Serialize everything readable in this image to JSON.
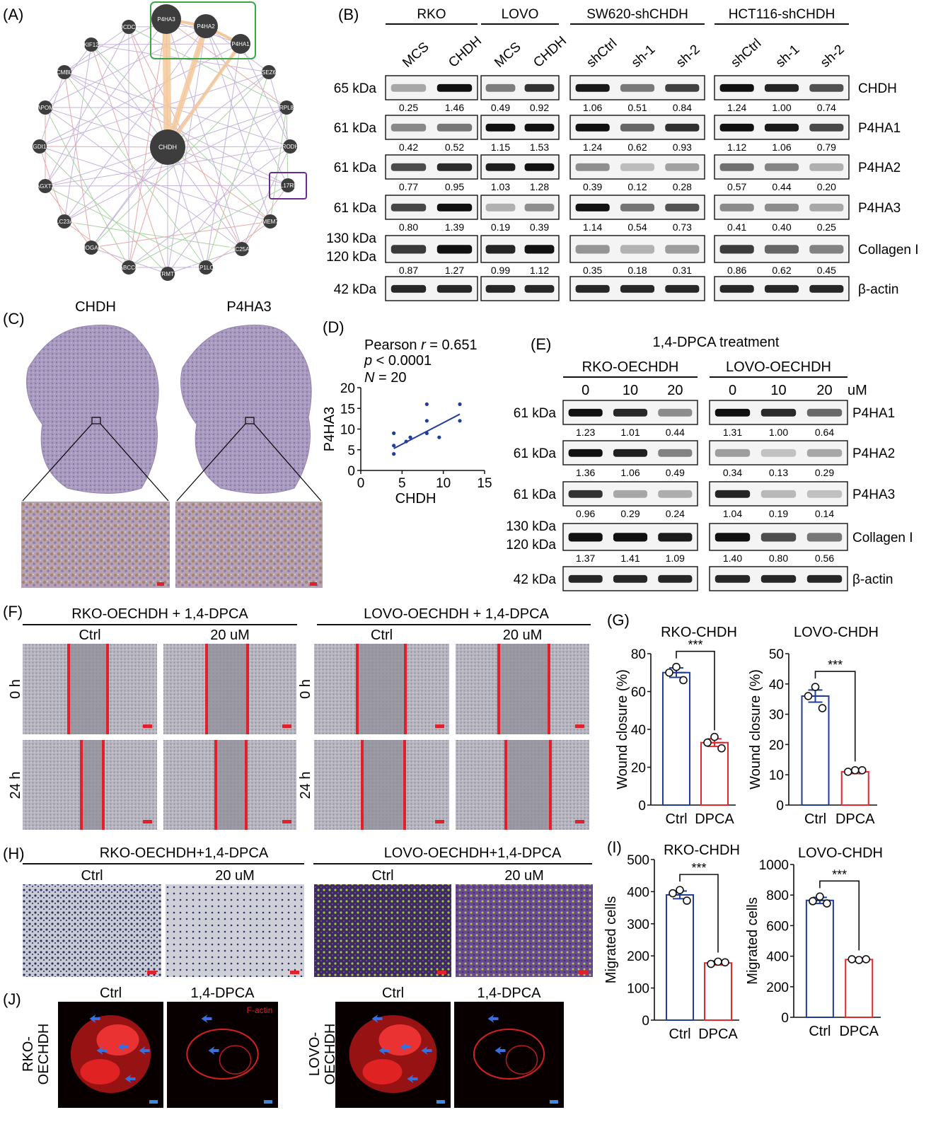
{
  "panels": {
    "A": "(A)",
    "B": "(B)",
    "C": "(C)",
    "D": "(D)",
    "E": "(E)",
    "F": "(F)",
    "G": "(G)",
    "H": "(H)",
    "I": "(I)",
    "J": "(J)"
  },
  "network": {
    "center": "CHDH",
    "boxed_top": [
      "P4HA3",
      "P4HA2",
      "P4HA1"
    ],
    "boxed_right": "IL17RB",
    "nodes": [
      "DCDC2",
      "KIF12",
      "CMBL",
      "APOM",
      "GDI1",
      "AGXT2",
      "SLC23A3",
      "HOGA1",
      "ABCC6",
      "TRMT1",
      "MAP1LC3A",
      "SLC25A10",
      "TMEM70",
      "PRODH2",
      "RPL8",
      "SEZ6"
    ],
    "colors": {
      "green_box": "#3aa845",
      "purple_box": "#6a2c8f",
      "thick_edge": "#f5c89a",
      "node": "#3d3d3d"
    }
  },
  "blotB": {
    "groups": [
      "RKO",
      "LOVO",
      "SW620-shCHDH",
      "HCT116-shCHDH"
    ],
    "lanes": [
      [
        "MCS",
        "CHDH"
      ],
      [
        "MCS",
        "CHDH"
      ],
      [
        "shCtrl",
        "sh-1",
        "sh-2"
      ],
      [
        "shCtrl",
        "sh-1",
        "sh-2"
      ]
    ],
    "rows": [
      {
        "kda": "65 kDa",
        "protein": "CHDH",
        "values": [
          [
            "0.25",
            "1.46"
          ],
          [
            "0.49",
            "0.92"
          ],
          [
            "1.06",
            "0.51",
            "0.84"
          ],
          [
            "1.24",
            "1.00",
            "0.74"
          ]
        ]
      },
      {
        "kda": "61 kDa",
        "protein": "P4HA1",
        "values": [
          [
            "0.42",
            "0.52"
          ],
          [
            "1.15",
            "1.53"
          ],
          [
            "1.24",
            "0.62",
            "0.93"
          ],
          [
            "1.12",
            "1.06",
            "0.79"
          ]
        ]
      },
      {
        "kda": "61 kDa",
        "protein": "P4HA2",
        "values": [
          [
            "0.77",
            "0.95"
          ],
          [
            "1.03",
            "1.28"
          ],
          [
            "0.39",
            "0.12",
            "0.28"
          ],
          [
            "0.57",
            "0.44",
            "0.20"
          ]
        ]
      },
      {
        "kda": "61 kDa",
        "protein": "P4HA3",
        "values": [
          [
            "0.80",
            "1.39"
          ],
          [
            "0.19",
            "0.39"
          ],
          [
            "1.14",
            "0.54",
            "0.73"
          ],
          [
            "0.41",
            "0.40",
            "0.25"
          ]
        ]
      },
      {
        "kda": "130 kDa",
        "kda2": "120 kDa",
        "protein": "Collagen I",
        "values": [
          [
            "0.87",
            "1.27"
          ],
          [
            "0.99",
            "1.12"
          ],
          [
            "0.35",
            "0.18",
            "0.31"
          ],
          [
            "0.86",
            "0.62",
            "0.45"
          ]
        ]
      },
      {
        "kda": "42 kDa",
        "protein": "β-actin",
        "values": null
      }
    ]
  },
  "ihc": {
    "labels": [
      "CHDH",
      "P4HA3"
    ]
  },
  "scatterD": {
    "stat1_prefix": "Pearson ",
    "stat1_italic": "r",
    "stat1_suffix": " = 0.651",
    "stat2_italic": "p",
    "stat2_suffix": " < 0.0001",
    "stat3_italic": "N",
    "stat3_suffix": " = 20",
    "chart_data": {
      "type": "scatter",
      "xlabel": "CHDH",
      "ylabel": "P4HA3",
      "xlim": [
        0,
        15
      ],
      "ylim": [
        0,
        20
      ],
      "xticks": [
        "0",
        "5",
        "10",
        "15"
      ],
      "yticks": [
        "0",
        "5",
        "10",
        "15",
        "20"
      ],
      "points": [
        [
          4,
          4
        ],
        [
          4,
          6
        ],
        [
          4,
          9
        ],
        [
          5.5,
          7
        ],
        [
          6,
          8
        ],
        [
          8,
          9
        ],
        [
          8,
          16
        ],
        [
          8,
          12
        ],
        [
          9.5,
          8
        ],
        [
          12,
          12
        ],
        [
          12,
          16
        ]
      ],
      "fit": [
        [
          4,
          5.3
        ],
        [
          12,
          13.6
        ]
      ]
    }
  },
  "blotE": {
    "title": "1,4-DPCA treatment",
    "groups": [
      "RKO-OECHDH",
      "LOVO-OECHDH"
    ],
    "conc": [
      "0",
      "10",
      "20"
    ],
    "unit": "uM",
    "rows": [
      {
        "kda": "61 kDa",
        "protein": "P4HA1",
        "values": [
          [
            "1.23",
            "1.01",
            "0.44"
          ],
          [
            "1.31",
            "1.00",
            "0.64"
          ]
        ]
      },
      {
        "kda": "61 kDa",
        "protein": "P4HA2",
        "values": [
          [
            "1.36",
            "1.06",
            "0.49"
          ],
          [
            "0.34",
            "0.13",
            "0.29"
          ]
        ]
      },
      {
        "kda": "61 kDa",
        "protein": "P4HA3",
        "values": [
          [
            "0.96",
            "0.29",
            "0.24"
          ],
          [
            "1.04",
            "0.19",
            "0.14"
          ]
        ]
      },
      {
        "kda": "130 kDa",
        "kda2": "120 kDa",
        "protein": "Collagen I",
        "values": [
          [
            "1.37",
            "1.41",
            "1.09"
          ],
          [
            "1.40",
            "0.80",
            "0.56"
          ]
        ]
      },
      {
        "kda": "42 kDa",
        "protein": "β-actin",
        "values": null
      }
    ]
  },
  "woundF": {
    "left_title": "RKO-OECHDH + 1,4-DPCA",
    "right_title": "LOVO-OECHDH + 1,4-DPCA",
    "cols": [
      "Ctrl",
      "20 uM"
    ],
    "rows": [
      "0 h",
      "24 h"
    ]
  },
  "transwellH": {
    "left_title": "RKO-OECHDH+1,4-DPCA",
    "right_title": "LOVO-OECHDH+1,4-DPCA",
    "cols": [
      "Ctrl",
      "20 uM"
    ]
  },
  "phalloidinJ": {
    "cols": [
      "Ctrl",
      "1,4-DPCA"
    ],
    "row_left": [
      "RKO-",
      "OECHDH"
    ],
    "row_right": [
      "LOVO-",
      "OECHDH"
    ],
    "stain": "F-actin"
  },
  "chartG": {
    "significance": "***",
    "chart_data": [
      {
        "type": "bar",
        "title": "RKO-CHDH",
        "ylabel": "Wound closure (%)",
        "categories": [
          "Ctrl",
          "DPCA"
        ],
        "values": [
          70,
          33
        ],
        "points": [
          [
            73,
            70,
            66
          ],
          [
            36,
            33,
            30
          ]
        ],
        "errors": [
          2.5,
          2.0
        ],
        "ylim": [
          0,
          80
        ],
        "yticks": [
          "0",
          "20",
          "40",
          "60",
          "80"
        ],
        "colors": [
          "#1f3d99",
          "#e5272b"
        ]
      },
      {
        "type": "bar",
        "title": "LOVO-CHDH",
        "ylabel": "Wound closure (%)",
        "categories": [
          "Ctrl",
          "DPCA"
        ],
        "values": [
          36,
          11
        ],
        "points": [
          [
            39,
            36,
            32
          ],
          [
            11.5,
            11,
            11.5
          ]
        ],
        "errors": [
          2.0,
          0.6
        ],
        "ylim": [
          0,
          50
        ],
        "yticks": [
          "0",
          "10",
          "20",
          "30",
          "40",
          "50"
        ],
        "colors": [
          "#1f3d99",
          "#e5272b"
        ]
      }
    ]
  },
  "chartI": {
    "significance": "***",
    "chart_data": [
      {
        "type": "bar",
        "title": "RKO-CHDH",
        "ylabel": "Migrated cells",
        "categories": [
          "Ctrl",
          "DPCA"
        ],
        "values": [
          390,
          178
        ],
        "points": [
          [
            405,
            395,
            372
          ],
          [
            182,
            175,
            180
          ]
        ],
        "errors": [
          12,
          6
        ],
        "ylim": [
          0,
          500
        ],
        "yticks": [
          "0",
          "100",
          "200",
          "300",
          "400",
          "500"
        ],
        "colors": [
          "#1f3d99",
          "#e5272b"
        ]
      },
      {
        "type": "bar",
        "title": "LOVO-CHDH",
        "ylabel": "Migrated cells",
        "categories": [
          "Ctrl",
          "DPCA"
        ],
        "values": [
          765,
          378
        ],
        "points": [
          [
            790,
            760,
            745
          ],
          [
            375,
            380,
            380
          ]
        ],
        "errors": [
          20,
          4
        ],
        "ylim": [
          0,
          1000
        ],
        "yticks": [
          "0",
          "200",
          "400",
          "600",
          "800",
          "1000"
        ],
        "colors": [
          "#1f3d99",
          "#e5272b"
        ]
      }
    ]
  }
}
